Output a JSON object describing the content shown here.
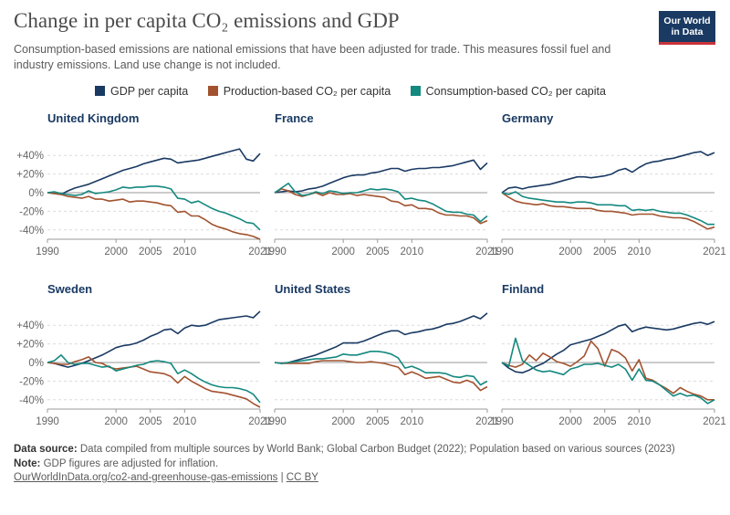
{
  "header": {
    "title": "Change in per capita CO₂ emissions and GDP",
    "subtitle": "Consumption-based emissions are national emissions that have been adjusted for trade. This measures fossil fuel and industry emissions. Land use change is not included.",
    "logo_line1": "Our World",
    "logo_line2": "in Data"
  },
  "legend": [
    {
      "label": "GDP per capita",
      "color": "#1a3a63"
    },
    {
      "label": "Production-based CO₂ per capita",
      "color": "#a2522f"
    },
    {
      "label": "Consumption-based CO₂ per capita",
      "color": "#14897f"
    }
  ],
  "footer": {
    "source_label": "Data source:",
    "source_text": "Data compiled from multiple sources by World Bank; Global Carbon Budget (2022); Population based on various sources (2023)",
    "note_label": "Note:",
    "note_text": "GDP figures are adjusted for inflation.",
    "link_text": "OurWorldInData.org/co2-and-greenhouse-gas-emissions",
    "separator": "|",
    "license": "CC BY"
  },
  "chart_data": {
    "type": "line",
    "x_range": [
      1990,
      2021
    ],
    "y_range": [
      -50,
      55
    ],
    "x_ticks": [
      1990,
      2000,
      2005,
      2010,
      2021
    ],
    "x_tick_labels": [
      "1990",
      "2000",
      "2005",
      "2010",
      "2021"
    ],
    "y_ticks": [
      40,
      20,
      0,
      -20,
      -40
    ],
    "y_tick_labels": [
      "+40%",
      "+20%",
      "0%",
      "-20%",
      "-40%"
    ],
    "grid": "horizontal dotted",
    "series_names": [
      "GDP per capita",
      "Production-based CO₂ per capita",
      "Consumption-based CO₂ per capita"
    ],
    "series_colors": [
      "#1a3a63",
      "#a2522f",
      "#14897f"
    ],
    "panels": [
      {
        "name": "United Kingdom",
        "gdp": [
          0,
          -1,
          -2,
          2,
          5,
          7,
          9,
          12,
          15,
          18,
          21,
          24,
          26,
          28,
          31,
          33,
          35,
          37,
          36,
          32,
          33,
          34,
          35,
          37,
          39,
          41,
          43,
          45,
          47,
          36,
          34,
          42
        ],
        "production": [
          0,
          -1,
          -2,
          -4,
          -5,
          -6,
          -4,
          -7,
          -7,
          -9,
          -8,
          -7,
          -10,
          -9,
          -9,
          -10,
          -11,
          -13,
          -14,
          -21,
          -20,
          -25,
          -25,
          -29,
          -34,
          -37,
          -39,
          -42,
          -44,
          -45,
          -47,
          -50
        ],
        "consumption": [
          0,
          1,
          -1,
          -2,
          -3,
          -2,
          2,
          -1,
          0,
          1,
          3,
          6,
          5,
          6,
          6,
          7,
          7,
          6,
          4,
          -6,
          -7,
          -11,
          -9,
          -13,
          -17,
          -20,
          -22,
          -25,
          -28,
          -32,
          -33,
          -40
        ]
      },
      {
        "name": "France",
        "gdp": [
          0,
          1,
          2,
          1,
          2,
          4,
          5,
          7,
          10,
          13,
          16,
          18,
          19,
          19,
          21,
          22,
          24,
          26,
          26,
          23,
          25,
          26,
          26,
          27,
          27,
          28,
          29,
          31,
          33,
          35,
          25,
          32
        ],
        "production": [
          0,
          4,
          2,
          -2,
          -4,
          -2,
          0,
          -3,
          0,
          -2,
          -2,
          -1,
          -3,
          -2,
          -3,
          -4,
          -5,
          -9,
          -10,
          -14,
          -13,
          -17,
          -17,
          -18,
          -22,
          -24,
          -24,
          -25,
          -25,
          -27,
          -33,
          -30
        ],
        "consumption": [
          0,
          5,
          10,
          1,
          -3,
          -2,
          1,
          -1,
          2,
          1,
          -1,
          0,
          0,
          2,
          4,
          3,
          4,
          3,
          1,
          -7,
          -6,
          -8,
          -9,
          -12,
          -16,
          -20,
          -21,
          -21,
          -23,
          -24,
          -31,
          -25
        ]
      },
      {
        "name": "Germany",
        "gdp": [
          0,
          5,
          6,
          4,
          6,
          7,
          8,
          9,
          11,
          13,
          15,
          17,
          17,
          16,
          17,
          18,
          20,
          24,
          26,
          22,
          27,
          31,
          33,
          34,
          36,
          37,
          39,
          41,
          43,
          44,
          40,
          43
        ],
        "production": [
          0,
          -5,
          -9,
          -11,
          -12,
          -13,
          -12,
          -14,
          -15,
          -15,
          -16,
          -17,
          -17,
          -17,
          -19,
          -20,
          -20,
          -21,
          -22,
          -24,
          -23,
          -23,
          -23,
          -25,
          -26,
          -27,
          -27,
          -28,
          -31,
          -35,
          -39,
          -37
        ],
        "consumption": [
          0,
          -2,
          1,
          -4,
          -6,
          -7,
          -8,
          -9,
          -10,
          -10,
          -11,
          -10,
          -10,
          -11,
          -13,
          -13,
          -13,
          -14,
          -14,
          -19,
          -18,
          -19,
          -18,
          -20,
          -21,
          -22,
          -22,
          -24,
          -27,
          -30,
          -34,
          -34
        ]
      },
      {
        "name": "Sweden",
        "gdp": [
          0,
          -1,
          -3,
          -5,
          -3,
          -1,
          2,
          5,
          8,
          12,
          16,
          18,
          19,
          21,
          24,
          28,
          31,
          35,
          36,
          31,
          37,
          40,
          39,
          40,
          43,
          46,
          47,
          48,
          49,
          50,
          48,
          55
        ],
        "production": [
          0,
          -1,
          -2,
          -2,
          1,
          3,
          6,
          0,
          -1,
          -5,
          -7,
          -6,
          -5,
          -4,
          -7,
          -10,
          -11,
          -12,
          -15,
          -22,
          -15,
          -20,
          -24,
          -28,
          -31,
          -32,
          -33,
          -35,
          -37,
          -39,
          -44,
          -48
        ],
        "consumption": [
          0,
          2,
          8,
          0,
          -2,
          -1,
          -1,
          -3,
          -5,
          -4,
          -9,
          -7,
          -5,
          -3,
          -2,
          1,
          2,
          1,
          -1,
          -12,
          -8,
          -12,
          -17,
          -21,
          -24,
          -26,
          -27,
          -27,
          -28,
          -30,
          -34,
          -43
        ]
      },
      {
        "name": "United States",
        "gdp": [
          0,
          -1,
          0,
          2,
          4,
          6,
          8,
          11,
          14,
          17,
          21,
          21,
          21,
          23,
          26,
          29,
          32,
          34,
          34,
          30,
          32,
          33,
          35,
          36,
          38,
          41,
          42,
          44,
          47,
          50,
          47,
          53
        ],
        "production": [
          0,
          -1,
          -1,
          -1,
          -1,
          -1,
          1,
          2,
          2,
          2,
          2,
          1,
          0,
          0,
          1,
          0,
          -1,
          -3,
          -5,
          -13,
          -10,
          -13,
          -17,
          -16,
          -15,
          -18,
          -21,
          -22,
          -19,
          -22,
          -30,
          -26
        ],
        "consumption": [
          0,
          -1,
          0,
          1,
          2,
          3,
          4,
          4,
          5,
          6,
          9,
          8,
          8,
          10,
          12,
          12,
          11,
          9,
          5,
          -6,
          -4,
          -7,
          -11,
          -11,
          -11,
          -12,
          -15,
          -16,
          -14,
          -15,
          -24,
          -20
        ]
      },
      {
        "name": "Finland",
        "gdp": [
          0,
          -6,
          -10,
          -11,
          -8,
          -4,
          -1,
          4,
          9,
          13,
          19,
          21,
          23,
          25,
          28,
          31,
          35,
          39,
          41,
          33,
          36,
          38,
          37,
          36,
          35,
          36,
          38,
          40,
          42,
          43,
          41,
          44
        ],
        "production": [
          0,
          -3,
          -5,
          -2,
          8,
          2,
          10,
          6,
          1,
          -1,
          -4,
          1,
          7,
          23,
          15,
          -4,
          14,
          11,
          5,
          -9,
          3,
          -17,
          -19,
          -24,
          -28,
          -33,
          -27,
          -31,
          -34,
          -36,
          -40,
          -40
        ],
        "consumption": [
          0,
          -4,
          26,
          2,
          -3,
          -8,
          -10,
          -9,
          -11,
          -13,
          -7,
          -5,
          -2,
          -2,
          -1,
          -3,
          -5,
          -2,
          -7,
          -19,
          -7,
          -19,
          -20,
          -24,
          -30,
          -36,
          -33,
          -36,
          -35,
          -38,
          -44,
          -40
        ]
      }
    ]
  }
}
